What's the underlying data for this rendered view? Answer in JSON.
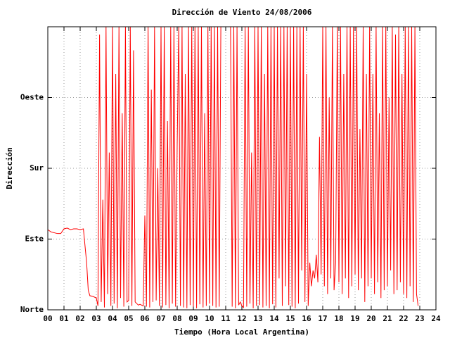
{
  "chart_data": {
    "type": "line",
    "title": "Dirección de Viento 24/08/2006",
    "x_label": "Tiempo (Hora Local Argentina)",
    "y_label": "Dirección",
    "xlim": [
      0,
      24
    ],
    "ylim": [
      0,
      360
    ],
    "grid": true,
    "xticks": [
      {
        "value": 0,
        "label": "00"
      },
      {
        "value": 1,
        "label": "01"
      },
      {
        "value": 2,
        "label": "02"
      },
      {
        "value": 3,
        "label": "03"
      },
      {
        "value": 4,
        "label": "04"
      },
      {
        "value": 5,
        "label": "05"
      },
      {
        "value": 6,
        "label": "06"
      },
      {
        "value": 7,
        "label": "07"
      },
      {
        "value": 8,
        "label": "08"
      },
      {
        "value": 9,
        "label": "09"
      },
      10,
      11,
      12,
      13,
      14,
      15,
      16,
      17,
      18,
      19,
      20,
      21,
      22,
      23,
      24
    ],
    "yticks": [
      {
        "value": 0,
        "label": "Norte"
      },
      {
        "value": 90,
        "label": "Este"
      },
      {
        "value": 180,
        "label": "Sur"
      },
      {
        "value": 270,
        "label": "Oeste"
      }
    ],
    "series": [
      {
        "color": "#ff0000",
        "x": [
          0,
          0.2,
          0.4,
          0.6,
          0.8,
          1.0,
          1.2,
          1.4,
          1.6,
          1.8,
          2.0,
          2.2,
          2.4,
          2.5,
          2.6,
          2.8,
          3.0,
          3.1,
          3.2,
          3.3,
          3.4,
          3.5,
          3.6,
          3.7,
          3.8,
          3.9,
          4.0,
          4.1,
          4.2,
          4.3,
          4.4,
          4.5,
          4.6,
          4.7,
          4.8,
          4.9,
          5.0,
          5.1,
          5.2,
          5.3,
          5.4,
          5.5,
          5.6,
          5.7,
          5.8,
          5.9,
          6.0,
          6.1,
          6.2,
          6.3,
          6.4,
          6.5,
          6.6,
          6.7,
          6.8,
          6.9,
          7.0,
          7.1,
          7.2,
          7.3,
          7.4,
          7.5,
          7.6,
          7.7,
          7.8,
          7.9,
          8.0,
          8.1,
          8.2,
          8.3,
          8.4,
          8.5,
          8.6,
          8.7,
          8.8,
          8.9,
          9.0,
          9.1,
          9.2,
          9.3,
          9.4,
          9.5,
          9.6,
          9.7,
          9.8,
          9.9,
          10.0,
          10.1,
          10.2,
          10.3,
          10.4,
          10.5,
          10.6,
          10.7,
          10.8,
          10.9,
          11.0,
          11.1,
          11.2,
          11.3,
          11.4,
          11.5,
          11.6,
          11.7,
          11.8,
          11.9,
          12.0,
          12.1,
          12.2,
          12.3,
          12.4,
          12.5,
          12.6,
          12.7,
          12.8,
          12.9,
          13.0,
          13.1,
          13.2,
          13.3,
          13.4,
          13.5,
          13.6,
          13.7,
          13.8,
          13.9,
          14.0,
          14.1,
          14.2,
          14.3,
          14.4,
          14.5,
          14.6,
          14.7,
          14.8,
          14.9,
          15.0,
          15.1,
          15.2,
          15.3,
          15.4,
          15.5,
          15.6,
          15.7,
          15.8,
          15.9,
          16.0,
          16.1,
          16.2,
          16.3,
          16.4,
          16.5,
          16.6,
          16.7,
          16.8,
          16.9,
          17.0,
          17.1,
          17.2,
          17.3,
          17.4,
          17.5,
          17.6,
          17.7,
          17.8,
          17.9,
          18.0,
          18.1,
          18.2,
          18.3,
          18.4,
          18.5,
          18.6,
          18.7,
          18.8,
          18.9,
          19.0,
          19.1,
          19.2,
          19.3,
          19.4,
          19.5,
          19.6,
          19.7,
          19.8,
          19.9,
          20.0,
          20.1,
          20.2,
          20.3,
          20.4,
          20.5,
          20.6,
          20.7,
          20.8,
          20.9,
          21.0,
          21.1,
          21.2,
          21.3,
          21.4,
          21.5,
          21.6,
          21.7,
          21.8,
          21.9,
          22.0,
          22.1,
          22.2,
          22.3,
          22.4,
          22.5,
          22.6,
          22.7,
          22.8,
          22.9
        ],
        "values": [
          102,
          99,
          98,
          97,
          97,
          103,
          104,
          102,
          103,
          103,
          102,
          103,
          60,
          25,
          18,
          17,
          15,
          5,
          350,
          10,
          140,
          3,
          360,
          20,
          200,
          5,
          360,
          8,
          300,
          2,
          360,
          15,
          250,
          4,
          360,
          10,
          12,
          360,
          5,
          330,
          10,
          8,
          6,
          7,
          6,
          5,
          120,
          4,
          360,
          3,
          280,
          10,
          360,
          12,
          180,
          5,
          360,
          3,
          360,
          6,
          240,
          2,
          360,
          8,
          360,
          4,
          210,
          360,
          5,
          360,
          3,
          300,
          2,
          360,
          6,
          360,
          4,
          360,
          2,
          360,
          7,
          360,
          3,
          250,
          5,
          360,
          8,
          360,
          5,
          360,
          3,
          360,
          4,
          360,
          360,
          360,
          360,
          360,
          360,
          360,
          4,
          360,
          2,
          360,
          6,
          10,
          5,
          3,
          360,
          4,
          360,
          8,
          200,
          2,
          360,
          5,
          360,
          6,
          360,
          3,
          300,
          5,
          360,
          2,
          360,
          7,
          360,
          3,
          360,
          40,
          360,
          5,
          360,
          30,
          360,
          6,
          360,
          4,
          360,
          2,
          360,
          8,
          360,
          50,
          360,
          10,
          300,
          5,
          60,
          30,
          50,
          40,
          70,
          35,
          220,
          45,
          360,
          30,
          360,
          20,
          270,
          40,
          360,
          25,
          60,
          360,
          35,
          360,
          20,
          300,
          40,
          360,
          15,
          360,
          30,
          360,
          45,
          360,
          25,
          230,
          40,
          360,
          10,
          300,
          30,
          360,
          40,
          300,
          20,
          360,
          35,
          250,
          15,
          360,
          25,
          360,
          30,
          270,
          50,
          360,
          20,
          350,
          25,
          360,
          35,
          300,
          20,
          360,
          15,
          360,
          30,
          360,
          10,
          360,
          20,
          5
        ]
      }
    ]
  }
}
